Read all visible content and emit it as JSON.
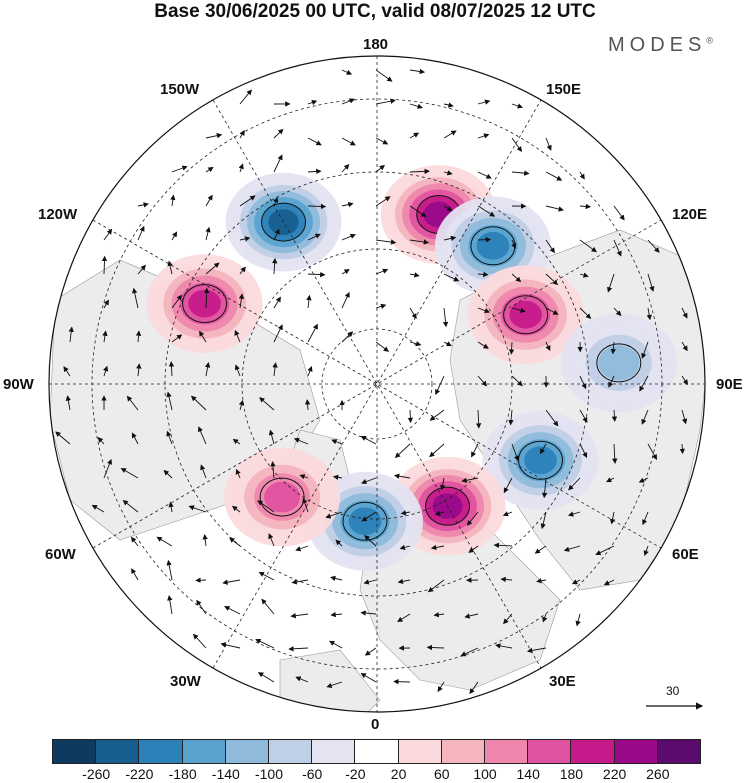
{
  "header": {
    "title": "Base 30/06/2025 00 UTC, valid 08/07/2025 12 UTC",
    "brand": "MODES",
    "brand_mark": "®"
  },
  "map": {
    "projection": "north-polar-stereographic",
    "longitude_labels": {
      "lon_180": "180",
      "lon_150E": "150E",
      "lon_120E": "120E",
      "lon_90E": "90E",
      "lon_60E": "60E",
      "lon_30E": "30E",
      "lon_0": "0",
      "lon_30W": "30W",
      "lon_60W": "60W",
      "lon_90W": "90W",
      "lon_120W": "120W",
      "lon_150W": "150W"
    },
    "anomaly_centers": [
      {
        "sign": "positive",
        "peak": 220,
        "lon": "160E"
      },
      {
        "sign": "negative",
        "peak": -220,
        "lon": "150W"
      },
      {
        "sign": "negative",
        "peak": -180,
        "lon": "140E"
      },
      {
        "sign": "positive",
        "peak": 180,
        "lon": "115W"
      },
      {
        "sign": "positive",
        "peak": 180,
        "lon": "115E"
      },
      {
        "sign": "negative",
        "peak": -100,
        "lon": "95E"
      },
      {
        "sign": "negative",
        "peak": -180,
        "lon": "65E"
      },
      {
        "sign": "positive",
        "peak": 220,
        "lon": "30E"
      },
      {
        "sign": "negative",
        "peak": -180,
        "lon": "5W"
      },
      {
        "sign": "positive",
        "peak": 160,
        "lon": "40W"
      }
    ]
  },
  "vector_reference": {
    "value": "30"
  },
  "colorbar": {
    "colors": [
      "#0d3a5e",
      "#165e8e",
      "#2b81b8",
      "#5aa3cf",
      "#8fbadb",
      "#bfcfe6",
      "#e3e3f1",
      "#ffffff",
      "#fbdadd",
      "#f4b5bd",
      "#ef86ad",
      "#e053a0",
      "#c51b8a",
      "#99098a",
      "#5b0a6e"
    ],
    "ticks": [
      "-260",
      "-220",
      "-180",
      "-140",
      "-100",
      "-60",
      "-20",
      "20",
      "60",
      "100",
      "140",
      "180",
      "220",
      "260"
    ]
  },
  "colors": {
    "background": "#ffffff",
    "land_gray": "#eeeeee",
    "positive_shading": "#f4b5bd",
    "negative_shading": "#8fbadb"
  }
}
